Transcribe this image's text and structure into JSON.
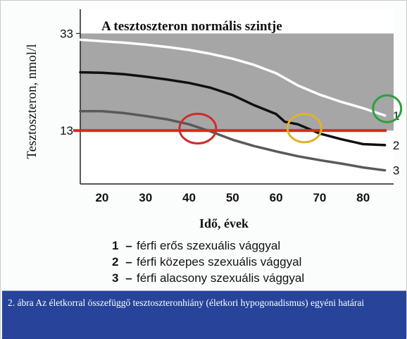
{
  "chart_data": {
    "type": "line",
    "title": "A tesztoszteron normális szintje",
    "ylabel": "Tesztoszteron, nmol/l",
    "xlabel": "Idő, évek",
    "x_ticks": [
      20,
      30,
      40,
      50,
      60,
      70,
      80
    ],
    "y_ticks": [
      13,
      33
    ],
    "xlim": [
      15,
      87
    ],
    "ylim": [
      2,
      38
    ],
    "normal_range": [
      13,
      33
    ],
    "threshold": {
      "value": 13,
      "color": "#d42a1c"
    },
    "colors": {
      "band": "#a6a6a6",
      "series1": "#ffffff",
      "series2": "#101010",
      "series3": "#595959",
      "circle_red": "#d02b2a",
      "circle_yellow": "#e2b12a",
      "circle_green": "#2aa13c"
    },
    "series": [
      {
        "name": "1",
        "x": [
          15,
          20,
          25,
          30,
          35,
          40,
          45,
          50,
          55,
          60,
          65,
          70,
          75,
          80,
          85
        ],
        "y": [
          31.7,
          31.4,
          31.1,
          30.7,
          30.2,
          29.6,
          28.8,
          27.8,
          26.5,
          24.8,
          22.3,
          20.4,
          18.9,
          17.6,
          16.1
        ]
      },
      {
        "name": "2",
        "x": [
          15,
          20,
          25,
          30,
          35,
          40,
          45,
          50,
          55,
          60,
          62,
          65,
          70,
          75,
          80,
          85
        ],
        "y": [
          25.0,
          24.9,
          24.6,
          24.1,
          23.5,
          22.8,
          21.8,
          20.3,
          18.2,
          16.4,
          14.8,
          14.3,
          12.4,
          11.2,
          10.2,
          10.0
        ]
      },
      {
        "name": "3",
        "x": [
          15,
          20,
          25,
          30,
          35,
          40,
          45,
          50,
          55,
          60,
          65,
          70,
          75,
          80,
          85
        ],
        "y": [
          17.0,
          17.0,
          16.6,
          16.0,
          15.3,
          14.3,
          12.8,
          11.1,
          9.8,
          8.7,
          7.7,
          6.9,
          6.2,
          5.4,
          4.8
        ]
      }
    ],
    "legend": [
      {
        "num": "1",
        "dash": "–",
        "text": "férfi erős szexuális vággyal"
      },
      {
        "num": "2",
        "dash": "–",
        "text": "férfi közepes szexuális vággyal"
      },
      {
        "num": "3",
        "dash": "–",
        "text": "férfi alacsony szexuális vággyal"
      }
    ],
    "highlights": [
      {
        "name": "red-circle",
        "x": 42,
        "y": 13.4,
        "color": "circle_red"
      },
      {
        "name": "yellow-circle",
        "x": 66.5,
        "y": 13.5,
        "color": "circle_yellow"
      },
      {
        "name": "green-circle",
        "x": 85.5,
        "y": 17.5,
        "color": "circle_green"
      }
    ]
  },
  "caption": "2. ábra Az életkorral összefüggő tesztoszteronhiány (életkori hypogonadismus) egyéni határai"
}
